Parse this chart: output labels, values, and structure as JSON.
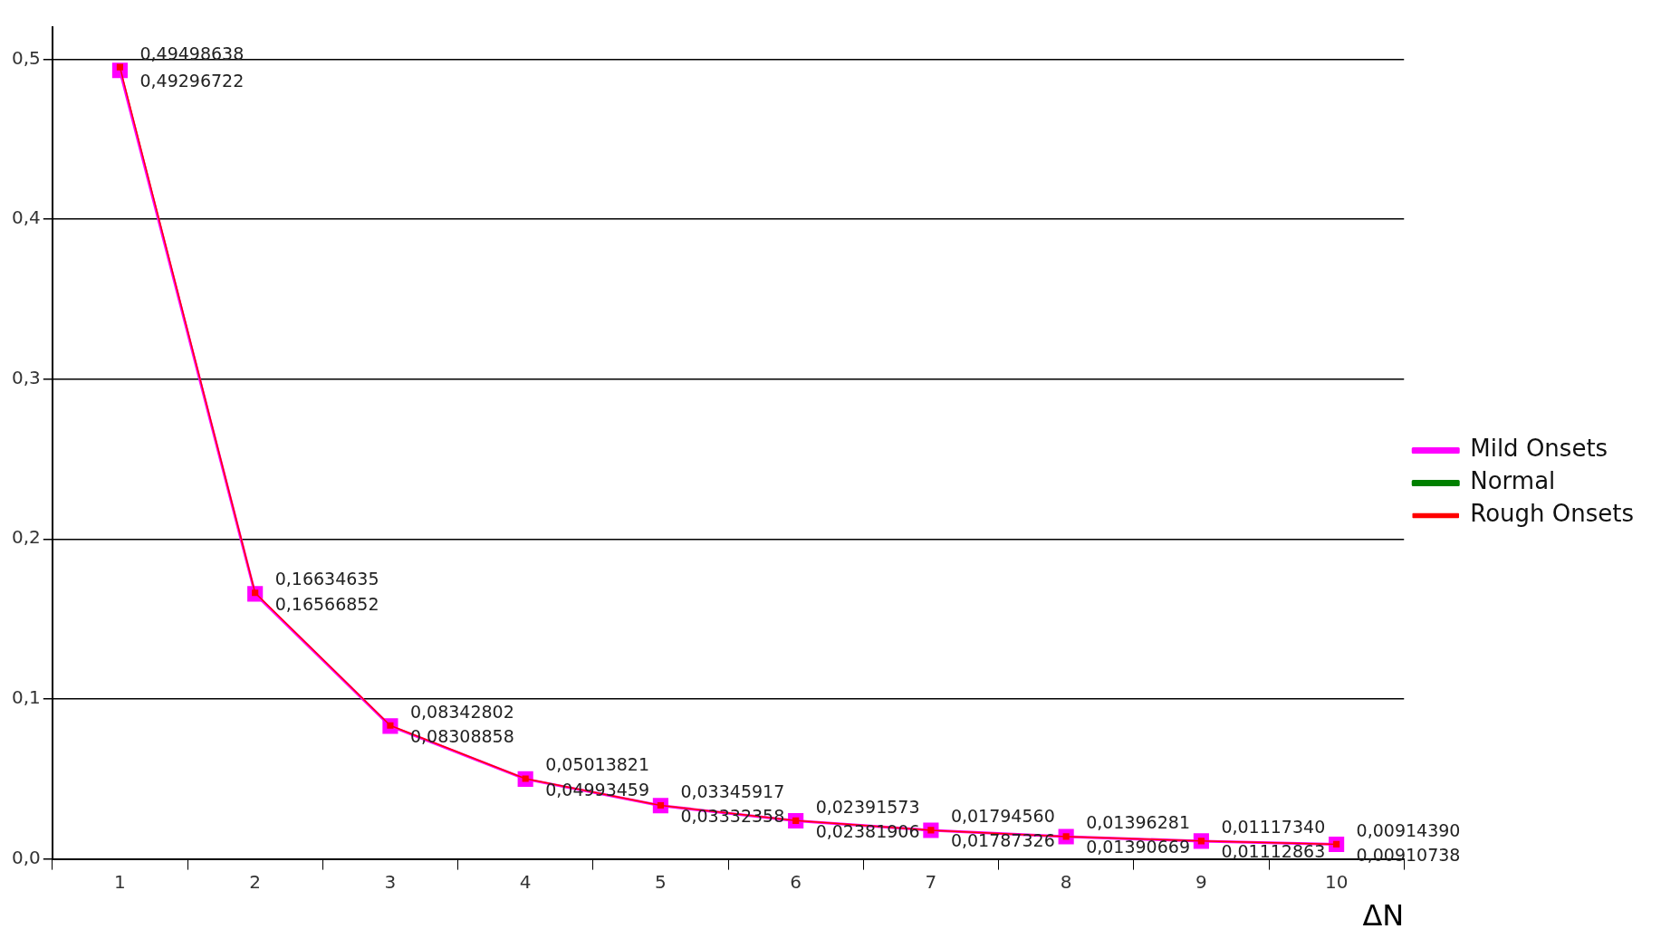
{
  "chart_data": {
    "type": "line",
    "categories": [
      "1",
      "2",
      "3",
      "4",
      "5",
      "6",
      "7",
      "8",
      "9",
      "10"
    ],
    "xlabel": "ΔN",
    "series": [
      {
        "name": "Mild Onsets",
        "color": "#ff00ff",
        "values": [
          0.49296722,
          0.16566852,
          0.08308858,
          0.04993459,
          0.03332358,
          0.02381906,
          0.01787326,
          0.01390669,
          0.01112863,
          0.00910738
        ],
        "value_labels": [
          "0,49296722",
          "0,16566852",
          "0,08308858",
          "0,04993459",
          "0,03332358",
          "0,02381906",
          "0,01787326",
          "0,01390669",
          "0,01112863",
          "0,00910738"
        ]
      },
      {
        "name": "Normal",
        "color": "#008000",
        "values": [
          null,
          null,
          null,
          null,
          null,
          null,
          null,
          null,
          null,
          null
        ]
      },
      {
        "name": "Rough Onsets",
        "color": "#ff0000",
        "values": [
          0.49498638,
          0.16634635,
          0.08342802,
          0.05013821,
          0.03345917,
          0.02391573,
          0.0179456,
          0.01396281,
          0.0111734,
          0.0091439
        ],
        "value_labels": [
          "0,49498638",
          "0,16634635",
          "0,08342802",
          "0,05013821",
          "0,03345917",
          "0,02391573",
          "0,01794560",
          "0,01396281",
          "0,01117340",
          "0,00914390"
        ]
      }
    ],
    "ylim": [
      0,
      0.52
    ],
    "yticks": [
      {
        "value": 0,
        "label": "0,0"
      },
      {
        "value": 0.1,
        "label": "0,1"
      },
      {
        "value": 0.2,
        "label": "0,2"
      },
      {
        "value": 0.3,
        "label": "0,3"
      },
      {
        "value": 0.4,
        "label": "0,4"
      },
      {
        "value": 0.5,
        "label": "0,5"
      }
    ],
    "grid": "y",
    "legend": "right",
    "marker": "square",
    "line_style": "solid"
  }
}
